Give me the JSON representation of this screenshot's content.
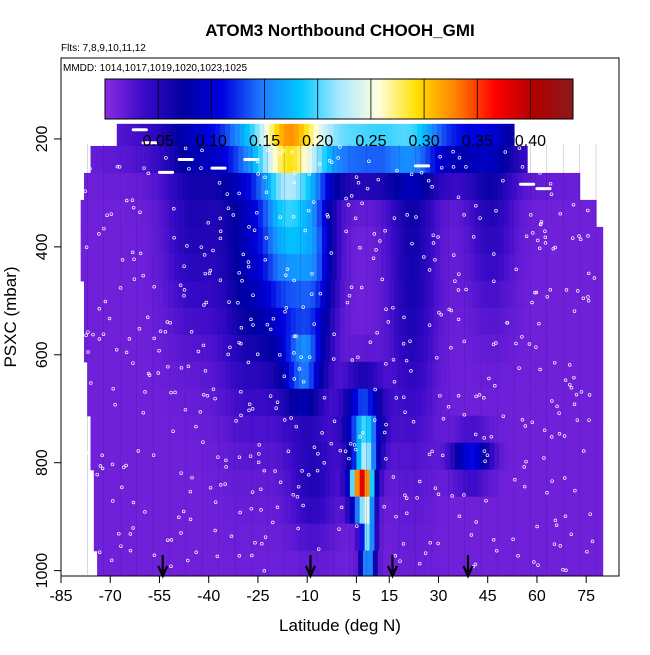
{
  "chart_data": {
    "type": "heatmap",
    "title": "ATOM3 Northbound CHOOH_GMI",
    "subtitle_flights": "Flts: 7,8,9,10,11,12",
    "subtitle_dates": "MMDD: 1014,1017,1019,1020,1023,1025",
    "xlabel": "Latitude (deg N)",
    "ylabel": "PSXC (mbar)",
    "xlim": [
      -85,
      85
    ],
    "ylim": [
      1010,
      50
    ],
    "y_reversed": true,
    "x_ticks": [
      -85,
      -70,
      -55,
      -40,
      -25,
      -10,
      5,
      15,
      30,
      45,
      60,
      75
    ],
    "y_ticks": [
      200,
      400,
      600,
      800,
      1000
    ],
    "colorbar": {
      "range": [
        0.0,
        0.44
      ],
      "tick_values": [
        0.05,
        0.1,
        0.15,
        0.2,
        0.25,
        0.3,
        0.35,
        0.4
      ],
      "tick_labels": [
        "0.05",
        "0.10",
        "0.15",
        "0.20",
        "0.25",
        "0.30",
        "0.35",
        "0.40"
      ],
      "colors": [
        "#8a2be2",
        "#3a0ac8",
        "#0000a0",
        "#0000e0",
        "#1e78ff",
        "#00c8ff",
        "#a8e8ff",
        "#ffffe0",
        "#ffe000",
        "#ff8000",
        "#ff0000",
        "#b00000",
        "#8b1a1a"
      ]
    },
    "arrows_latitude": [
      -54,
      -9,
      16,
      39
    ],
    "grid_latitudes": [
      -77,
      -72,
      -67,
      -62,
      -57,
      -52,
      -47,
      -42,
      -37,
      -32,
      -27,
      -22,
      -17,
      -12,
      -7,
      -2,
      3,
      8,
      13,
      18,
      23,
      28,
      33,
      38,
      43,
      48,
      53,
      58,
      63,
      68,
      73,
      78
    ],
    "pressure_levels": [
      188,
      238,
      288,
      338,
      388,
      438,
      488,
      538,
      588,
      638,
      688,
      738,
      788,
      838,
      888,
      938,
      988
    ],
    "coverage_by_level": [
      [
        -68,
        53
      ],
      [
        -76,
        57
      ],
      [
        -78,
        73
      ],
      [
        -79,
        78
      ],
      [
        -79,
        80
      ],
      [
        -79,
        80
      ],
      [
        -78,
        80
      ],
      [
        -78,
        80
      ],
      [
        -78,
        80
      ],
      [
        -77,
        80
      ],
      [
        -77,
        80
      ],
      [
        -76,
        80
      ],
      [
        -76,
        80
      ],
      [
        -75,
        80
      ],
      [
        -75,
        80
      ],
      [
        -75,
        80
      ],
      [
        -74,
        80
      ]
    ],
    "value_features": [
      {
        "lat": 1.5,
        "p": 190,
        "a": 0.19,
        "sx": 30,
        "sp": 55
      },
      {
        "lat": -16,
        "p": 300,
        "a": 0.17,
        "sx": 6,
        "sp": 200
      },
      {
        "lat": -7,
        "p": 420,
        "a": 0.09,
        "sx": 4,
        "sp": 120
      },
      {
        "lat": -29,
        "p": 400,
        "a": 0.06,
        "sx": 6,
        "sp": 200
      },
      {
        "lat": -45,
        "p": 350,
        "a": 0.04,
        "sx": 6,
        "sp": 150
      },
      {
        "lat": -11,
        "p": 620,
        "a": 0.1,
        "sx": 4,
        "sp": 50
      },
      {
        "lat": 7,
        "p": 720,
        "a": 0.13,
        "sx": 4,
        "sp": 55
      },
      {
        "lat": 8,
        "p": 790,
        "a": 0.12,
        "sx": 2.5,
        "sp": 45
      },
      {
        "lat": 6,
        "p": 850,
        "a": 0.3,
        "sx": 2.2,
        "sp": 28
      },
      {
        "lat": 8.5,
        "p": 940,
        "a": 0.2,
        "sx": 1.5,
        "sp": 70
      },
      {
        "lat": 40,
        "p": 790,
        "a": 0.1,
        "sx": 4,
        "sp": 28
      },
      {
        "lat": 22,
        "p": 400,
        "a": 0.05,
        "sx": 5,
        "sp": 250
      },
      {
        "lat": 46,
        "p": 300,
        "a": 0.04,
        "sx": 5,
        "sp": 150
      },
      {
        "lat": -8,
        "p": 830,
        "a": 0.04,
        "sx": 5,
        "sp": 80
      }
    ]
  }
}
